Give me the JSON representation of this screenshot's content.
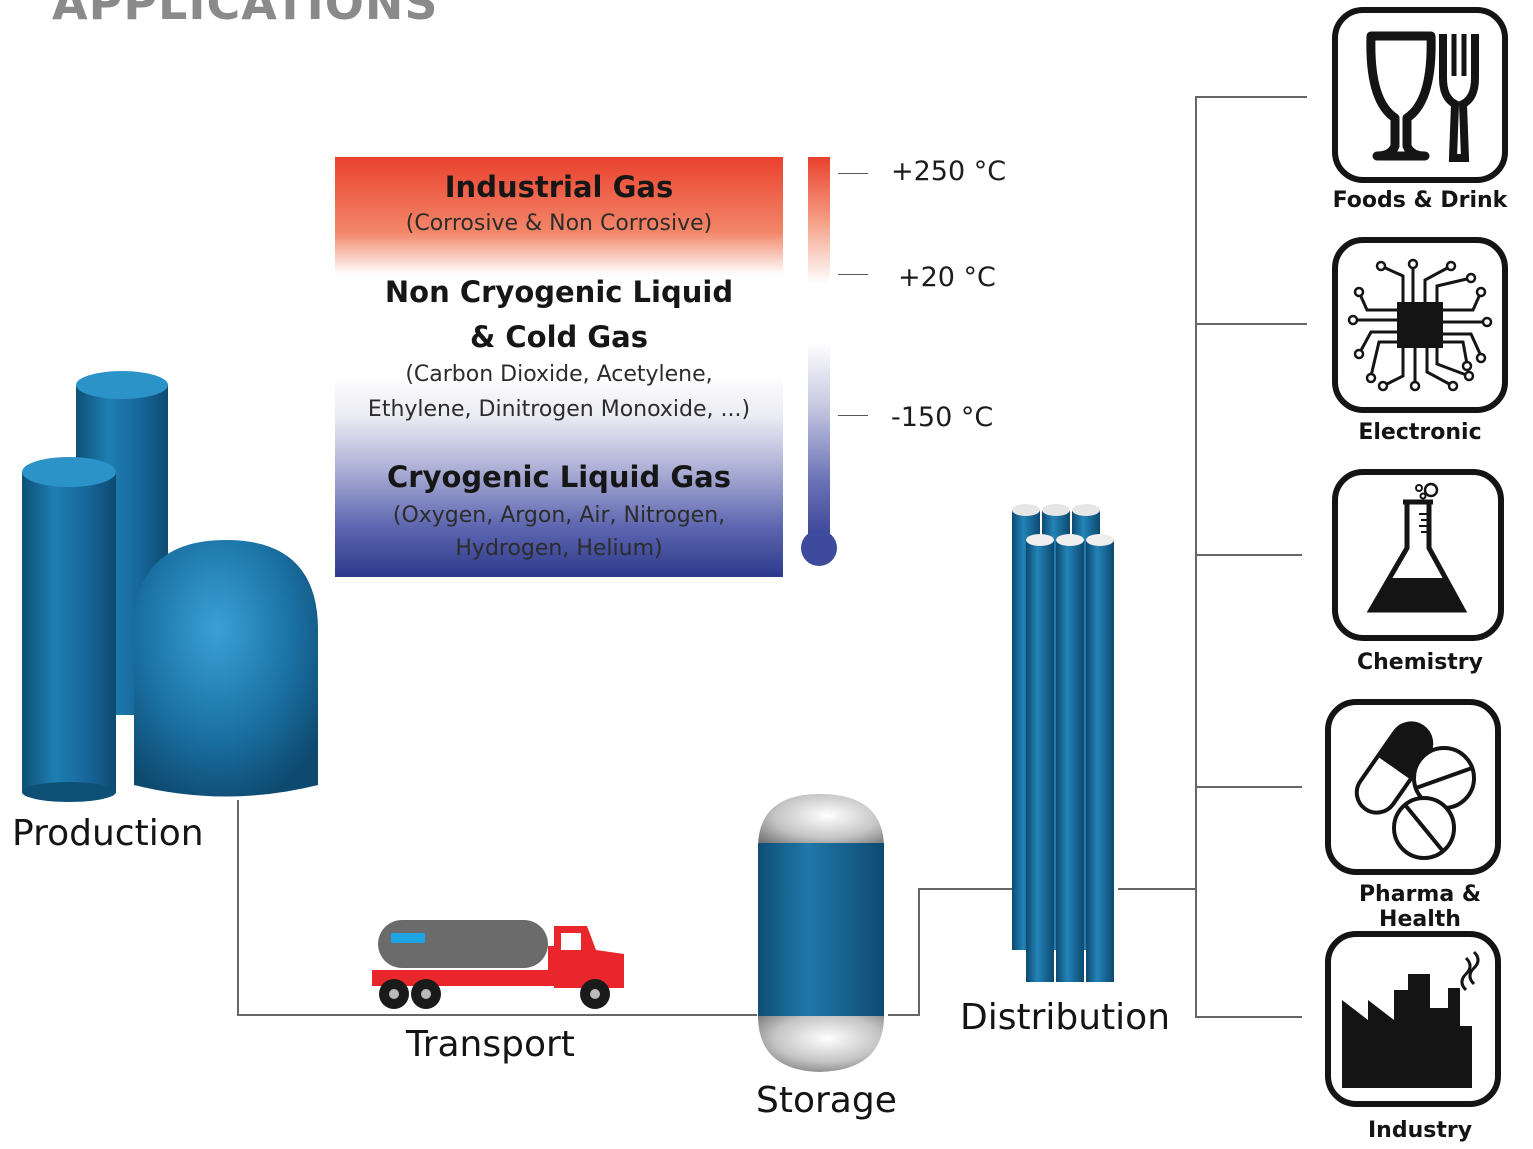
{
  "page_title": "APPLICATIONS",
  "gas_panel": {
    "industrial": {
      "title": "Industrial Gas",
      "subtitle": "(Corrosive & Non Corrosive)"
    },
    "non_cryogenic": {
      "title_line1": "Non Cryogenic Liquid",
      "title_line2": "& Cold Gas",
      "subtitle_line1": "(Carbon Dioxide, Acetylene,",
      "subtitle_line2": "Ethylene, Dinitrogen Monoxide, ...)"
    },
    "cryogenic": {
      "title": "Cryogenic Liquid Gas",
      "subtitle_line1": "(Oxygen, Argon, Air, Nitrogen,",
      "subtitle_line2": "Hydrogen, Helium)"
    }
  },
  "thermometer": {
    "high": "+250 °C",
    "mid": "+20 °C",
    "low": "-150 °C"
  },
  "stages": {
    "production": "Production",
    "transport": "Transport",
    "storage": "Storage",
    "distribution": "Distribution"
  },
  "applications": [
    {
      "label": "Foods & Drink",
      "icon": "glass-fork-icon"
    },
    {
      "label": "Electronic",
      "icon": "circuit-chip-icon"
    },
    {
      "label": "Chemistry",
      "icon": "flask-icon"
    },
    {
      "label": "Pharma & Health",
      "icon": "pills-icon"
    },
    {
      "label": "Industry",
      "icon": "factory-icon"
    }
  ],
  "colors": {
    "tank_blue": "#1a6e9c",
    "truck_red": "#e8262b",
    "accent_red": "#e9412e",
    "accent_blue": "#2d3a8c"
  }
}
